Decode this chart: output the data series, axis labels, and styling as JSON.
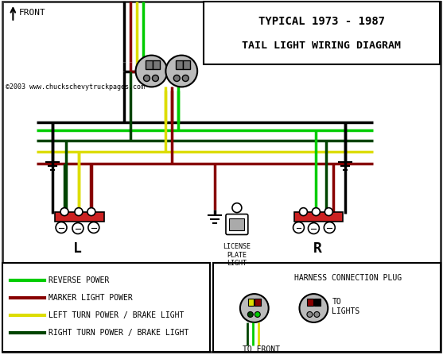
{
  "title_line1": "TYPICAL 1973 - 1987",
  "title_line2": "TAIL LIGHT WIRING DIAGRAM",
  "copyright": "©2003 www.chuckschevytruckpages.com",
  "front_label": "FRONT",
  "left_label": "L",
  "right_label": "R",
  "license_label": "LICENSE\nPLATE\nLIGHT",
  "legend_items": [
    {
      "color": "#00cc00",
      "label": "REVERSE POWER"
    },
    {
      "color": "#880000",
      "label": "MARKER LIGHT POWER"
    },
    {
      "color": "#dddd00",
      "label": "LEFT TURN POWER / BRAKE LIGHT"
    },
    {
      "color": "#004400",
      "label": "RIGHT TURN POWER / BRAKE LIGHT"
    }
  ],
  "harness_title": "HARNESS CONNECTION PLUG",
  "to_front": "TO FRONT",
  "to_lights": "TO\nLIGHTS",
  "bg_color": "#ffffff",
  "border_color": "#333333",
  "wire_lw": 2.5,
  "wire_colors": {
    "green_bright": "#00cc00",
    "dark_red": "#880000",
    "yellow": "#dddd00",
    "dark_green": "#004400",
    "black": "#000000"
  }
}
